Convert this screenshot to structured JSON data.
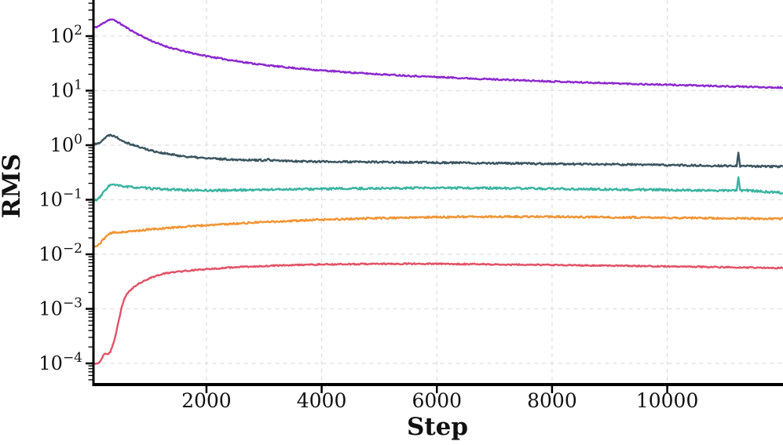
{
  "figure": {
    "background": "#ffffff",
    "axis_color": "#000000",
    "tick_label_color": "#111111",
    "grid_color": "#dedede"
  },
  "chart_data": {
    "type": "line",
    "title": "",
    "xlabel": "Step",
    "ylabel": "RMS",
    "legend": "none",
    "grid": true,
    "x_range": [
      0,
      12000
    ],
    "y_scale": "log",
    "y_range_exponents": [
      -4.4,
      2.66
    ],
    "x_ticks": [
      {
        "v": 2000,
        "t": "2000"
      },
      {
        "v": 4000,
        "t": "4000"
      },
      {
        "v": 6000,
        "t": "6000"
      },
      {
        "v": 8000,
        "t": "8000"
      },
      {
        "v": 10000,
        "t": "10000"
      }
    ],
    "y_ticks": [
      {
        "e": 2,
        "t": "2"
      },
      {
        "e": 1,
        "t": "1"
      },
      {
        "e": 0,
        "t": "0"
      },
      {
        "e": -1,
        "t": "−1"
      },
      {
        "e": -2,
        "t": "−2"
      },
      {
        "e": -3,
        "t": "−3"
      },
      {
        "e": -4,
        "t": "−4"
      }
    ],
    "series": [
      {
        "name": "purple",
        "color": "#8c28cd",
        "noise": 0.013,
        "seed": 11,
        "spikes": [],
        "anchors": [
          [
            0,
            140
          ],
          [
            120,
            150
          ],
          [
            250,
            185
          ],
          [
            330,
            205
          ],
          [
            420,
            192
          ],
          [
            520,
            165
          ],
          [
            650,
            135
          ],
          [
            800,
            110
          ],
          [
            1000,
            86
          ],
          [
            1200,
            70
          ],
          [
            1400,
            60
          ],
          [
            1700,
            50
          ],
          [
            2000,
            43
          ],
          [
            2400,
            36.5
          ],
          [
            2800,
            31.5
          ],
          [
            3200,
            28
          ],
          [
            3600,
            25.5
          ],
          [
            4000,
            23.5
          ],
          [
            4500,
            21.5
          ],
          [
            5000,
            20
          ],
          [
            5500,
            18.8
          ],
          [
            6000,
            17.8
          ],
          [
            6500,
            16.9
          ],
          [
            7000,
            16.1
          ],
          [
            7500,
            15.4
          ],
          [
            8000,
            14.8
          ],
          [
            8500,
            14.2
          ],
          [
            9000,
            13.7
          ],
          [
            9500,
            13.2
          ],
          [
            10000,
            12.8
          ],
          [
            10500,
            12.4
          ],
          [
            11000,
            12.0
          ],
          [
            11500,
            11.7
          ],
          [
            12000,
            11.4
          ]
        ]
      },
      {
        "name": "slate",
        "color": "#3a5560",
        "noise": 0.017,
        "seed": 22,
        "spikes": [
          [
            3080,
            0.565
          ],
          [
            11230,
            0.73
          ]
        ],
        "anchors": [
          [
            0,
            1.0
          ],
          [
            120,
            1.07
          ],
          [
            250,
            1.4
          ],
          [
            330,
            1.57
          ],
          [
            420,
            1.45
          ],
          [
            520,
            1.25
          ],
          [
            650,
            1.08
          ],
          [
            800,
            0.95
          ],
          [
            1000,
            0.82
          ],
          [
            1200,
            0.73
          ],
          [
            1400,
            0.67
          ],
          [
            1700,
            0.61
          ],
          [
            2000,
            0.575
          ],
          [
            2400,
            0.55
          ],
          [
            2800,
            0.535
          ],
          [
            3200,
            0.52
          ],
          [
            3600,
            0.51
          ],
          [
            4000,
            0.5
          ],
          [
            4500,
            0.495
          ],
          [
            5000,
            0.49
          ],
          [
            5500,
            0.485
          ],
          [
            6000,
            0.48
          ],
          [
            6500,
            0.475
          ],
          [
            7000,
            0.468
          ],
          [
            7500,
            0.462
          ],
          [
            8000,
            0.455
          ],
          [
            8500,
            0.45
          ],
          [
            9000,
            0.445
          ],
          [
            9500,
            0.44
          ],
          [
            10000,
            0.432
          ],
          [
            10500,
            0.425
          ],
          [
            11000,
            0.418
          ],
          [
            11500,
            0.41
          ],
          [
            12000,
            0.405
          ]
        ]
      },
      {
        "name": "teal",
        "color": "#3ab4a1",
        "noise": 0.019,
        "seed": 33,
        "spikes": [
          [
            11230,
            0.26
          ]
        ],
        "anchors": [
          [
            0,
            0.095
          ],
          [
            120,
            0.1
          ],
          [
            250,
            0.155
          ],
          [
            330,
            0.19
          ],
          [
            420,
            0.185
          ],
          [
            520,
            0.178
          ],
          [
            650,
            0.172
          ],
          [
            800,
            0.167
          ],
          [
            1000,
            0.162
          ],
          [
            1200,
            0.157
          ],
          [
            1500,
            0.152
          ],
          [
            1800,
            0.149
          ],
          [
            2100,
            0.148
          ],
          [
            2500,
            0.15
          ],
          [
            3000,
            0.153
          ],
          [
            3500,
            0.156
          ],
          [
            4000,
            0.158
          ],
          [
            4500,
            0.16
          ],
          [
            5000,
            0.162
          ],
          [
            5500,
            0.163
          ],
          [
            6000,
            0.164
          ],
          [
            6500,
            0.164
          ],
          [
            7000,
            0.163
          ],
          [
            7500,
            0.161
          ],
          [
            8000,
            0.159
          ],
          [
            8500,
            0.157
          ],
          [
            9000,
            0.155
          ],
          [
            9500,
            0.153
          ],
          [
            10000,
            0.151
          ],
          [
            10500,
            0.149
          ],
          [
            11000,
            0.147
          ],
          [
            11400,
            0.148
          ],
          [
            11700,
            0.14
          ],
          [
            12000,
            0.134
          ]
        ]
      },
      {
        "name": "orange",
        "color": "#f09433",
        "noise": 0.016,
        "seed": 44,
        "spikes": [],
        "anchors": [
          [
            0,
            0.013
          ],
          [
            120,
            0.0145
          ],
          [
            250,
            0.021
          ],
          [
            330,
            0.0245
          ],
          [
            420,
            0.025
          ],
          [
            520,
            0.0255
          ],
          [
            650,
            0.026
          ],
          [
            800,
            0.027
          ],
          [
            1000,
            0.0285
          ],
          [
            1200,
            0.0295
          ],
          [
            1500,
            0.0315
          ],
          [
            1800,
            0.033
          ],
          [
            2100,
            0.0345
          ],
          [
            2500,
            0.0365
          ],
          [
            3000,
            0.039
          ],
          [
            3500,
            0.041
          ],
          [
            4000,
            0.043
          ],
          [
            4500,
            0.0445
          ],
          [
            5000,
            0.046
          ],
          [
            5500,
            0.047
          ],
          [
            6000,
            0.048
          ],
          [
            6500,
            0.0487
          ],
          [
            7000,
            0.049
          ],
          [
            7500,
            0.049
          ],
          [
            8000,
            0.0488
          ],
          [
            8500,
            0.0483
          ],
          [
            9000,
            0.0478
          ],
          [
            9500,
            0.0472
          ],
          [
            10000,
            0.0467
          ],
          [
            10500,
            0.0462
          ],
          [
            11000,
            0.0458
          ],
          [
            11500,
            0.0453
          ],
          [
            12000,
            0.0448
          ]
        ]
      },
      {
        "name": "red",
        "color": "#e25266",
        "noise": 0.012,
        "seed": 55,
        "spikes": [],
        "anchors": [
          [
            0,
            0.0001
          ],
          [
            140,
            0.0001
          ],
          [
            220,
            0.00015
          ],
          [
            260,
            0.00016
          ],
          [
            300,
            0.00014
          ],
          [
            360,
            0.00019
          ],
          [
            420,
            0.00032
          ],
          [
            460,
            0.0005
          ],
          [
            500,
            0.0008
          ],
          [
            540,
            0.0012
          ],
          [
            580,
            0.0016
          ],
          [
            640,
            0.002
          ],
          [
            720,
            0.0024
          ],
          [
            800,
            0.0028
          ],
          [
            900,
            0.0032
          ],
          [
            1000,
            0.0036
          ],
          [
            1150,
            0.0041
          ],
          [
            1300,
            0.0045
          ],
          [
            1500,
            0.0048
          ],
          [
            1750,
            0.0051
          ],
          [
            2000,
            0.0053
          ],
          [
            2500,
            0.0058
          ],
          [
            3000,
            0.0061
          ],
          [
            3500,
            0.00635
          ],
          [
            4000,
            0.0065
          ],
          [
            4500,
            0.0066
          ],
          [
            5000,
            0.00668
          ],
          [
            5500,
            0.0067
          ],
          [
            6000,
            0.00668
          ],
          [
            6500,
            0.0066
          ],
          [
            7000,
            0.00652
          ],
          [
            7500,
            0.00645
          ],
          [
            8000,
            0.00636
          ],
          [
            8500,
            0.00628
          ],
          [
            9000,
            0.0062
          ],
          [
            9500,
            0.0061
          ],
          [
            10000,
            0.006
          ],
          [
            10500,
            0.0059
          ],
          [
            11000,
            0.0058
          ],
          [
            11500,
            0.0057
          ],
          [
            12000,
            0.0056
          ]
        ]
      }
    ]
  }
}
